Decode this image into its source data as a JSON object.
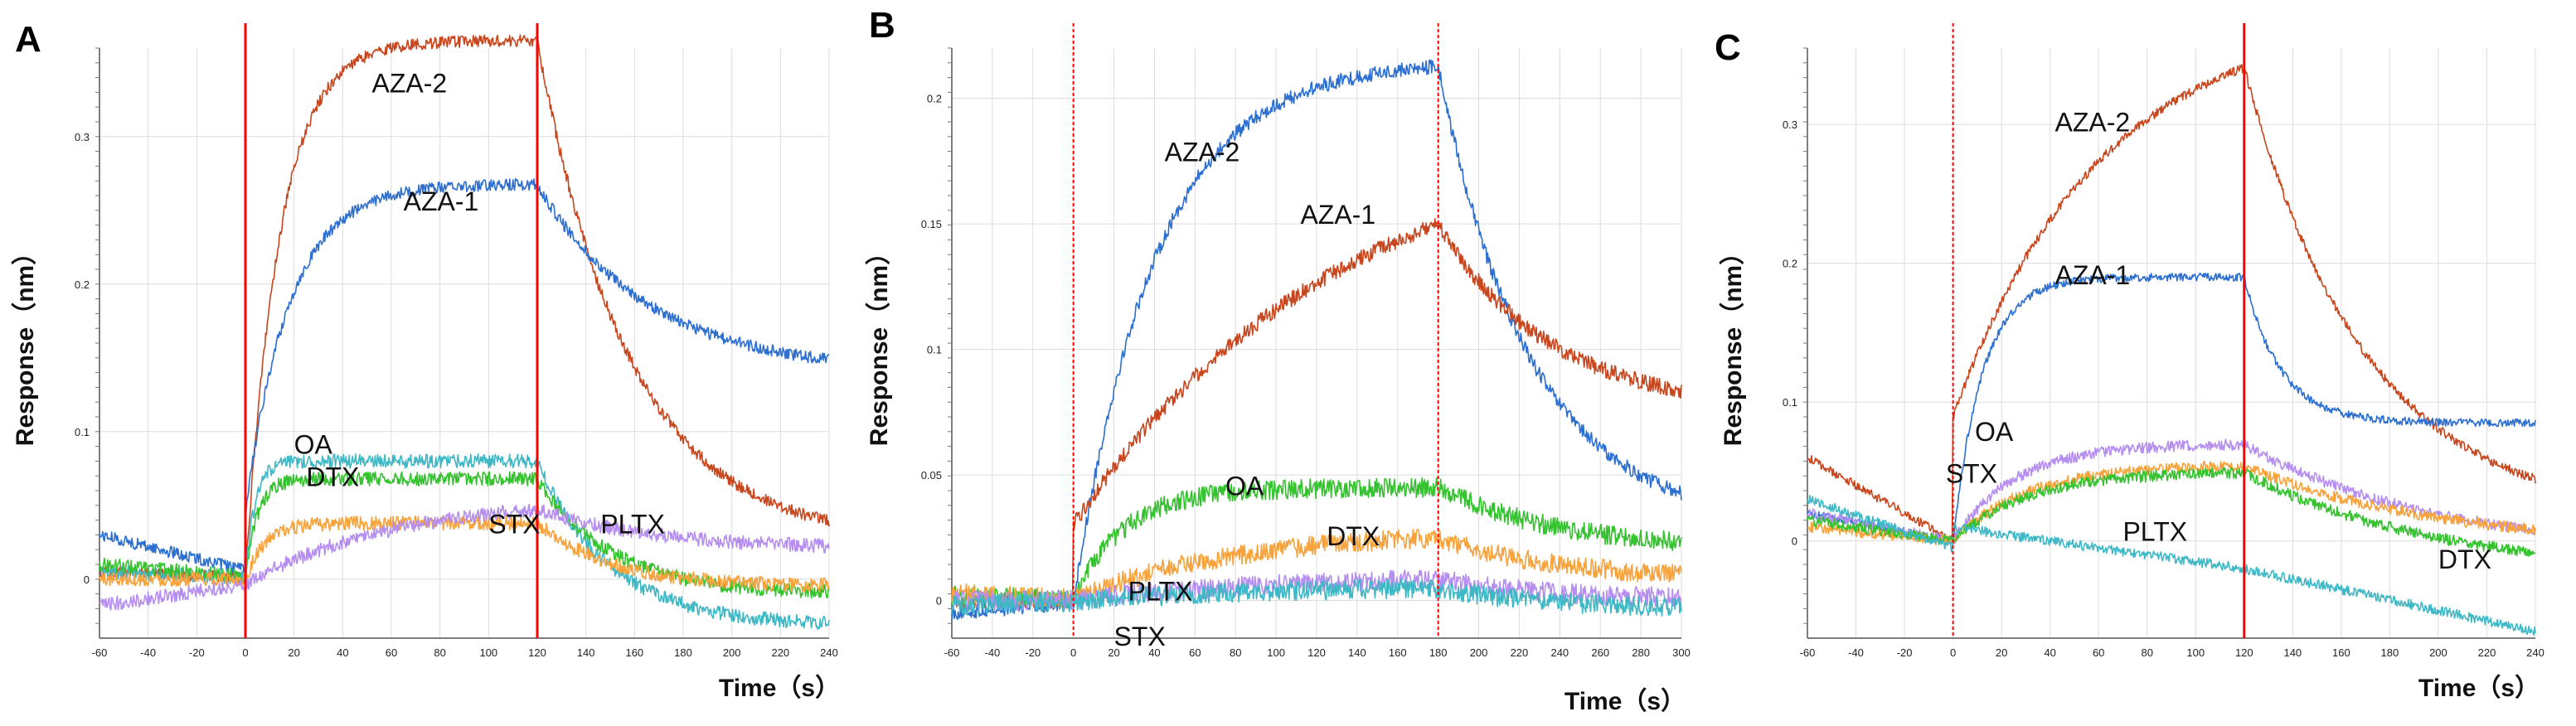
{
  "colors": {
    "AZA-2": "#c8461e",
    "AZA-1": "#2c6fd0",
    "OA": "#3fb8c6",
    "DTX": "#35c22f",
    "STX": "#f7a23a",
    "PLTX": "#b58ef0",
    "cyan": "#3fb8c6",
    "injection_line": "#ff0000",
    "grid": "#dcdcdc"
  },
  "chart_data": [
    {
      "panel": "A",
      "type": "line",
      "xlabel": "Time（s）",
      "ylabel": "Response（nm）",
      "xlim": [
        -60,
        240
      ],
      "ylim": [
        -0.04,
        0.36
      ],
      "xticks": [
        "-60",
        "-40",
        "-20",
        "0",
        "20",
        "40",
        "60",
        "80",
        "100",
        "120",
        "140",
        "160",
        "180",
        "200",
        "220",
        "240"
      ],
      "yticks": [
        "0",
        "0.1",
        "0.2",
        "0.3"
      ],
      "ytick_values": [
        0,
        0.1,
        0.2,
        0.3
      ],
      "assoc_start": 0,
      "dissoc_start": 120,
      "lines": [
        {
          "t": 0,
          "style": "solid"
        },
        {
          "t": 120,
          "style": "solid"
        }
      ],
      "series": [
        {
          "name": "AZA-2",
          "color_key": "AZA-2",
          "baseline_start": 0.005,
          "plateau": 0.365,
          "tau_a": 14,
          "diss_end": 0.025,
          "tau_d": 38,
          "noise": 0.0025,
          "trace_color": "AZA-2"
        },
        {
          "name": "AZA-1",
          "color_key": "AZA-1",
          "baseline_start": 0.03,
          "plateau": 0.268,
          "tau_a": 18,
          "jump": 0.04,
          "diss_end": 0.14,
          "tau_d": 45,
          "noise": 0.0025,
          "trace_color": "AZA-1"
        },
        {
          "name": "OA",
          "color_key": "OA",
          "baseline_start": 0.005,
          "plateau": 0.08,
          "tau_a": 4,
          "diss_end": -0.032,
          "tau_d": 30,
          "noise": 0.003,
          "trace_color": "cyan"
        },
        {
          "name": "DTX",
          "color_key": "DTX",
          "baseline_start": 0.01,
          "plateau": 0.068,
          "tau_a": 5,
          "diss_end": -0.01,
          "tau_d": 30,
          "noise": 0.003,
          "trace_color": "DTX"
        },
        {
          "name": "STX",
          "color_key": "STX",
          "baseline_start": 0.0,
          "plateau": 0.038,
          "tau_a": 8,
          "diss_end": -0.005,
          "tau_d": 30,
          "noise": 0.003,
          "trace_color": "STX"
        },
        {
          "name": "PLTX",
          "color_key": "PLTX",
          "baseline_start": -0.018,
          "plateau": 0.055,
          "tau_a": 60,
          "diss_end": 0.02,
          "tau_d": 50,
          "noise": 0.003,
          "trace_color": "PLTX"
        }
      ],
      "annotations": [
        {
          "text": "AZA-2",
          "x": 52,
          "y": 0.33
        },
        {
          "text": "AZA-1",
          "x": 65,
          "y": 0.25
        },
        {
          "text": "OA",
          "x": 20,
          "y": 0.085
        },
        {
          "text": "DTX",
          "x": 25,
          "y": 0.063
        },
        {
          "text": "STX",
          "x": 100,
          "y": 0.031
        },
        {
          "text": "PLTX",
          "x": 146,
          "y": 0.031
        }
      ]
    },
    {
      "panel": "B",
      "type": "line",
      "xlabel": "Time（s）",
      "ylabel": "Response（nm）",
      "xlim": [
        -60,
        300
      ],
      "ylim": [
        -0.015,
        0.22
      ],
      "xticks": [
        "-60",
        "-40",
        "-20",
        "0",
        "20",
        "40",
        "60",
        "80",
        "100",
        "120",
        "140",
        "160",
        "180",
        "200",
        "220",
        "240",
        "260",
        "280",
        "300"
      ],
      "yticks": [
        "0",
        "0.05",
        "0.1",
        "0.15",
        "0.2"
      ],
      "ytick_values": [
        0,
        0.05,
        0.1,
        0.15,
        0.2
      ],
      "assoc_start": 0,
      "dissoc_start": 180,
      "lines": [
        {
          "t": 0,
          "style": "dashed"
        },
        {
          "t": 180,
          "style": "dashed"
        }
      ],
      "series": [
        {
          "name": "AZA-2",
          "color_key": "AZA-1",
          "baseline_start": -0.005,
          "plateau": 0.215,
          "tau_a": 40,
          "diss_end": 0.03,
          "tau_d": 45,
          "noise": 0.0018,
          "trace_color": "AZA-1"
        },
        {
          "name": "AZA-1",
          "color_key": "AZA-2",
          "baseline_start": 0.0,
          "plateau": 0.19,
          "tau_a": 130,
          "jump": 0.03,
          "diss_end": 0.075,
          "tau_d": 55,
          "noise": 0.002,
          "trace_color": "AZA-2"
        },
        {
          "name": "OA",
          "color_key": "DTX",
          "baseline_start": 0.002,
          "plateau": 0.045,
          "tau_a": 25,
          "diss_end": 0.02,
          "tau_d": 60,
          "noise": 0.0025,
          "trace_color": "DTX"
        },
        {
          "name": "DTX",
          "color_key": "STX",
          "baseline_start": 0.003,
          "plateau": 0.028,
          "tau_a": 80,
          "diss_end": 0.008,
          "tau_d": 60,
          "noise": 0.0025,
          "trace_color": "STX"
        },
        {
          "name": "PLTX",
          "color_key": "PLTX",
          "baseline_start": 0.0,
          "plateau": 0.01,
          "tau_a": 100,
          "diss_end": 0.0,
          "tau_d": 60,
          "noise": 0.0025,
          "trace_color": "PLTX"
        },
        {
          "name": "STX",
          "color_key": "OA",
          "baseline_start": -0.002,
          "plateau": 0.006,
          "tau_a": 100,
          "diss_end": -0.004,
          "tau_d": 60,
          "noise": 0.0025,
          "trace_color": "cyan"
        }
      ],
      "annotations": [
        {
          "text": "AZA-2",
          "x": 45,
          "y": 0.175
        },
        {
          "text": "AZA-1",
          "x": 112,
          "y": 0.15
        },
        {
          "text": "OA",
          "x": 75,
          "y": 0.042
        },
        {
          "text": "DTX",
          "x": 125,
          "y": 0.022
        },
        {
          "text": "PLTX",
          "x": 27,
          "y": 0.0
        },
        {
          "text": "STX",
          "x": 20,
          "y": -0.018
        }
      ]
    },
    {
      "panel": "C",
      "type": "line",
      "xlabel": "Time（s）",
      "ylabel": "Response（nm）",
      "xlim": [
        -60,
        240
      ],
      "ylim": [
        -0.07,
        0.355
      ],
      "xticks": [
        "-60",
        "-40",
        "-20",
        "0",
        "20",
        "40",
        "60",
        "80",
        "100",
        "120",
        "140",
        "160",
        "180",
        "200",
        "220",
        "240"
      ],
      "yticks": [
        "0",
        "0.1",
        "0.2",
        "0.3"
      ],
      "ytick_values": [
        0,
        0.1,
        0.2,
        0.3
      ],
      "assoc_start": 0,
      "dissoc_start": 120,
      "lines": [
        {
          "t": 0,
          "style": "dashed"
        },
        {
          "t": 120,
          "style": "solid"
        }
      ],
      "series": [
        {
          "name": "AZA-2",
          "color_key": "AZA-2",
          "baseline_start": 0.06,
          "baseline_end": 0.0,
          "plateau": 0.38,
          "tau_a": 60,
          "jump": 0.09,
          "diss_end": 0.015,
          "tau_d": 50,
          "noise": 0.002,
          "trace_color": "AZA-2"
        },
        {
          "name": "AZA-1",
          "color_key": "AZA-1",
          "baseline_start": 0.02,
          "baseline_end": 0.0,
          "plateau": 0.19,
          "tau_a": 12,
          "diss_end": 0.085,
          "tau_d": 15,
          "noise": 0.0018,
          "trace_color": "AZA-1"
        },
        {
          "name": "OA",
          "color_key": "PLTX",
          "baseline_start": 0.02,
          "baseline_end": 0.0,
          "plateau": 0.07,
          "tau_a": 25,
          "diss_end": -0.01,
          "tau_d": 80,
          "noise": 0.0025,
          "trace_color": "PLTX"
        },
        {
          "name": "STX",
          "color_key": "STX",
          "baseline_start": 0.01,
          "baseline_end": 0.0,
          "plateau": 0.055,
          "tau_a": 30,
          "diss_end": -0.005,
          "tau_d": 80,
          "noise": 0.0025,
          "trace_color": "STX"
        },
        {
          "name": "DTX",
          "color_key": "DTX",
          "baseline_start": 0.015,
          "baseline_end": 0.0,
          "plateau": 0.05,
          "tau_a": 30,
          "diss_end": -0.025,
          "tau_d": 80,
          "noise": 0.0025,
          "trace_color": "DTX"
        },
        {
          "name": "PLTX",
          "color_key": "OA",
          "baseline_start": 0.03,
          "baseline_end": -0.005,
          "plateau": -0.02,
          "linear": true,
          "assoc_startval": 0.01,
          "diss_end": -0.065,
          "noise": 0.0022,
          "trace_color": "cyan"
        }
      ],
      "annotations": [
        {
          "text": "AZA-2",
          "x": 42,
          "y": 0.295
        },
        {
          "text": "AZA-1",
          "x": 42,
          "y": 0.185
        },
        {
          "text": "OA",
          "x": 9,
          "y": 0.072
        },
        {
          "text": "STX",
          "x": -3,
          "y": 0.042
        },
        {
          "text": "PLTX",
          "x": 70,
          "y": 0.0
        },
        {
          "text": "DTX",
          "x": 200,
          "y": -0.02
        }
      ]
    }
  ]
}
